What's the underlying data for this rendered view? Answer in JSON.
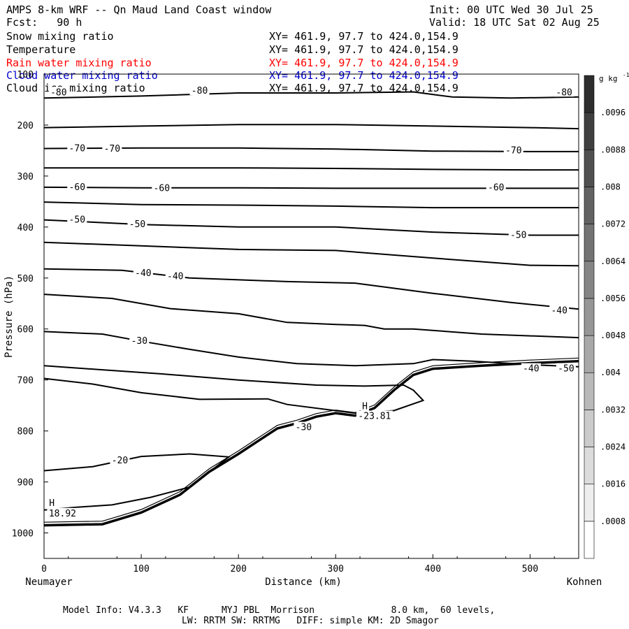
{
  "header": {
    "title": "AMPS 8-km WRF -- Qn Maud Land Coast window",
    "init": "Init: 00 UTC Wed 30 Jul 25",
    "fcst": "Fcst:   90 h",
    "valid": "Valid: 18 UTC Sat 02 Aug 25"
  },
  "fields": [
    {
      "name": "Snow mixing ratio",
      "xy": "XY= 461.9, 97.7 to 424.0,154.9",
      "color": "#000000"
    },
    {
      "name": "Temperature",
      "xy": "XY= 461.9, 97.7 to 424.0,154.9",
      "color": "#000000"
    },
    {
      "name": "Rain water mixing ratio",
      "xy": "XY= 461.9, 97.7 to 424.0,154.9",
      "color": "#ff0000"
    },
    {
      "name": "Cloud water mixing ratio",
      "xy": "XY= 461.9, 97.7 to 424.0,154.9",
      "color": "#0000cc"
    },
    {
      "name": "Cloud ice mixing ratio",
      "xy": "XY= 461.9, 97.7 to 424.0,154.9",
      "color": "#000000"
    }
  ],
  "footer": {
    "line1": "Model Info: V4.3.3   KF      MYJ PBL  Morrison              8.0 km,  60 levels,",
    "line2": "LW: RRTM SW: RRTMG   DIFF: simple KM: 2D Smagor"
  },
  "chart_data": {
    "type": "contour cross-section",
    "xlabel": "Distance (km)",
    "ylabel": "Pressure (hPa)",
    "x_left_label": "Neumayer",
    "x_right_label": "Kohnen",
    "xlim": [
      0,
      550
    ],
    "ylim": [
      1050,
      100
    ],
    "xticks": [
      0,
      100,
      200,
      300,
      400,
      500
    ],
    "yticks": [
      100,
      200,
      300,
      400,
      500,
      600,
      700,
      800,
      900,
      1000
    ],
    "colorbar": {
      "unit": "g kg",
      "unit_exp": "-1",
      "levels": [
        0.0008,
        0.0016,
        0.0024,
        0.0032,
        0.004,
        0.0048,
        0.0056,
        0.0064,
        0.0072,
        0.008,
        0.0088,
        0.0096
      ],
      "level_labels": [
        ".0008",
        ".0016",
        ".0024",
        ".0032",
        ".004",
        ".0048",
        ".0056",
        ".0064",
        ".0072",
        ".008",
        ".0088",
        ".0096"
      ]
    },
    "contour_labels": [
      {
        "text": "-80",
        "x": 15,
        "p": 136
      },
      {
        "text": "-80",
        "x": 160,
        "p": 133
      },
      {
        "text": "-80",
        "x": 535,
        "p": 136
      },
      {
        "text": "-70",
        "x": 34,
        "p": 246
      },
      {
        "text": "-70",
        "x": 70,
        "p": 247
      },
      {
        "text": "-70",
        "x": 483,
        "p": 250
      },
      {
        "text": "-60",
        "x": 34,
        "p": 322
      },
      {
        "text": "-60",
        "x": 121,
        "p": 324
      },
      {
        "text": "-60",
        "x": 465,
        "p": 323
      },
      {
        "text": "-50",
        "x": 34,
        "p": 386
      },
      {
        "text": "-50",
        "x": 96,
        "p": 395
      },
      {
        "text": "-50",
        "x": 488,
        "p": 416
      },
      {
        "text": "-40",
        "x": 102,
        "p": 491
      },
      {
        "text": "-40",
        "x": 135,
        "p": 497
      },
      {
        "text": "-40",
        "x": 530,
        "p": 564
      },
      {
        "text": "-30",
        "x": 98,
        "p": 624
      },
      {
        "text": "-30",
        "x": 267,
        "p": 793
      },
      {
        "text": "-20",
        "x": 78,
        "p": 858
      },
      {
        "text": "-40",
        "x": 501,
        "p": 678
      },
      {
        "text": "-50",
        "x": 537,
        "p": 678
      },
      {
        "text": "H",
        "x": 8,
        "p": 942
      },
      {
        "text": "18.92",
        "x": 19,
        "p": 962
      },
      {
        "text": "H",
        "x": 330,
        "p": 752
      },
      {
        "text": "-23.81",
        "x": 340,
        "p": 771
      }
    ],
    "isotherms": [
      {
        "label": "-80",
        "points": [
          [
            0,
            147
          ],
          [
            100,
            143
          ],
          [
            200,
            137
          ],
          [
            300,
            137
          ],
          [
            380,
            135
          ],
          [
            420,
            145
          ],
          [
            480,
            147
          ],
          [
            550,
            145
          ]
        ]
      },
      {
        "label": "-75",
        "points": [
          [
            0,
            205
          ],
          [
            100,
            202
          ],
          [
            200,
            199
          ],
          [
            300,
            199
          ],
          [
            400,
            202
          ],
          [
            500,
            205
          ],
          [
            550,
            207
          ]
        ]
      },
      {
        "label": "-70",
        "points": [
          [
            0,
            246
          ],
          [
            100,
            245
          ],
          [
            200,
            245
          ],
          [
            300,
            247
          ],
          [
            400,
            251
          ],
          [
            500,
            252
          ],
          [
            550,
            252
          ]
        ]
      },
      {
        "label": "-65",
        "points": [
          [
            0,
            284
          ],
          [
            100,
            284
          ],
          [
            200,
            284
          ],
          [
            300,
            285
          ],
          [
            400,
            287
          ],
          [
            500,
            288
          ],
          [
            550,
            288
          ]
        ]
      },
      {
        "label": "-60",
        "points": [
          [
            0,
            322
          ],
          [
            100,
            323
          ],
          [
            200,
            323
          ],
          [
            300,
            324
          ],
          [
            400,
            324
          ],
          [
            500,
            324
          ],
          [
            550,
            324
          ]
        ]
      },
      {
        "label": "-55",
        "points": [
          [
            0,
            351
          ],
          [
            100,
            356
          ],
          [
            200,
            357
          ],
          [
            300,
            359
          ],
          [
            400,
            362
          ],
          [
            500,
            362
          ],
          [
            550,
            362
          ]
        ]
      },
      {
        "label": "-50",
        "points": [
          [
            0,
            386
          ],
          [
            100,
            395
          ],
          [
            200,
            400
          ],
          [
            300,
            400
          ],
          [
            400,
            410
          ],
          [
            500,
            416
          ],
          [
            550,
            416
          ]
        ]
      },
      {
        "label": "-45",
        "points": [
          [
            0,
            430
          ],
          [
            100,
            437
          ],
          [
            200,
            444
          ],
          [
            300,
            446
          ],
          [
            400,
            461
          ],
          [
            500,
            475
          ],
          [
            550,
            476
          ]
        ]
      },
      {
        "label": "-40",
        "points": [
          [
            0,
            482
          ],
          [
            80,
            485
          ],
          [
            150,
            500
          ],
          [
            250,
            507
          ],
          [
            320,
            510
          ],
          [
            400,
            530
          ],
          [
            480,
            548
          ],
          [
            550,
            561
          ]
        ]
      },
      {
        "label": "-35",
        "points": [
          [
            0,
            532
          ],
          [
            70,
            540
          ],
          [
            130,
            560
          ],
          [
            200,
            570
          ],
          [
            250,
            587
          ],
          [
            300,
            591
          ],
          [
            330,
            593
          ],
          [
            350,
            600
          ],
          [
            380,
            600
          ],
          [
            450,
            610
          ],
          [
            550,
            617
          ]
        ]
      },
      {
        "label": "-30",
        "points": [
          [
            0,
            605
          ],
          [
            60,
            610
          ],
          [
            100,
            624
          ],
          [
            150,
            640
          ],
          [
            200,
            655
          ],
          [
            260,
            668
          ],
          [
            320,
            672
          ],
          [
            380,
            668
          ],
          [
            400,
            660
          ],
          [
            440,
            663
          ],
          [
            500,
            670
          ],
          [
            550,
            674
          ]
        ]
      },
      {
        "label": "-25",
        "points": [
          [
            0,
            697
          ],
          [
            50,
            708
          ],
          [
            100,
            725
          ],
          [
            160,
            738
          ],
          [
            230,
            737
          ],
          [
            250,
            748
          ],
          [
            320,
            765
          ],
          [
            360,
            760
          ],
          [
            390,
            740
          ],
          [
            380,
            720
          ],
          [
            370,
            710
          ],
          [
            330,
            712
          ],
          [
            280,
            710
          ],
          [
            200,
            700
          ],
          [
            120,
            688
          ],
          [
            60,
            680
          ],
          [
            0,
            672
          ]
        ]
      },
      {
        "label": "-20",
        "points": [
          [
            0,
            878
          ],
          [
            50,
            870
          ],
          [
            100,
            850
          ],
          [
            150,
            845
          ],
          [
            190,
            851
          ],
          [
            150,
            910
          ],
          [
            110,
            930
          ],
          [
            70,
            945
          ],
          [
            30,
            950
          ],
          [
            0,
            955
          ]
        ]
      }
    ],
    "surface": [
      [
        0,
        985
      ],
      [
        60,
        983
      ],
      [
        100,
        960
      ],
      [
        140,
        925
      ],
      [
        170,
        880
      ],
      [
        200,
        845
      ],
      [
        220,
        820
      ],
      [
        240,
        795
      ],
      [
        260,
        785
      ],
      [
        280,
        772
      ],
      [
        300,
        765
      ],
      [
        320,
        770
      ],
      [
        340,
        755
      ],
      [
        360,
        720
      ],
      [
        380,
        690
      ],
      [
        400,
        678
      ],
      [
        450,
        672
      ],
      [
        500,
        667
      ],
      [
        550,
        663
      ]
    ]
  }
}
